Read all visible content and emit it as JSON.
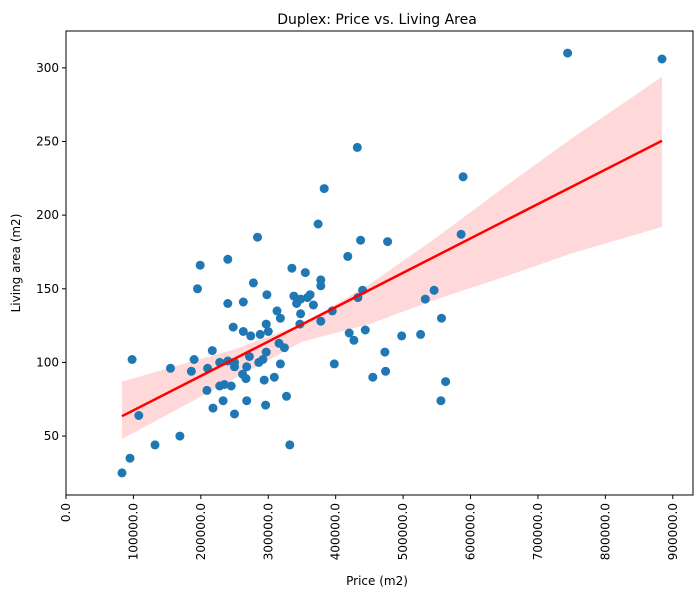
{
  "chart_data": {
    "type": "scatter",
    "title": "Duplex: Price vs. Living Area",
    "xlabel": "Price (m2)",
    "ylabel": "Living area (m2)",
    "xlim": [
      0,
      930000
    ],
    "ylim": [
      10,
      325
    ],
    "x_ticks": [
      0,
      100000,
      200000,
      300000,
      400000,
      500000,
      600000,
      700000,
      800000,
      900000
    ],
    "x_tick_labels": [
      "0.0",
      "100000.0",
      "200000.0",
      "300000.0",
      "400000.0",
      "500000.0",
      "600000.0",
      "700000.0",
      "800000.0",
      "900000.0"
    ],
    "y_ticks": [
      50,
      100,
      150,
      200,
      250,
      300
    ],
    "y_tick_labels": [
      "50",
      "100",
      "150",
      "200",
      "250",
      "300"
    ],
    "grid": false,
    "point_color": "#1f77b4",
    "line_color": "#ff0000",
    "band_color": "#ffcccc",
    "points": [
      [
        83000,
        25
      ],
      [
        95000,
        35
      ],
      [
        98000,
        102
      ],
      [
        108000,
        64
      ],
      [
        132000,
        44
      ],
      [
        155000,
        96
      ],
      [
        169000,
        50
      ],
      [
        186000,
        94
      ],
      [
        190000,
        102
      ],
      [
        195000,
        150
      ],
      [
        199000,
        166
      ],
      [
        209000,
        81
      ],
      [
        210000,
        96
      ],
      [
        217000,
        108
      ],
      [
        218000,
        69
      ],
      [
        228000,
        100
      ],
      [
        228000,
        84
      ],
      [
        233000,
        74
      ],
      [
        235000,
        85
      ],
      [
        240000,
        101
      ],
      [
        240000,
        140
      ],
      [
        240000,
        170
      ],
      [
        245000,
        84
      ],
      [
        248000,
        124
      ],
      [
        250000,
        97
      ],
      [
        250000,
        65
      ],
      [
        250000,
        100
      ],
      [
        262000,
        92
      ],
      [
        263000,
        121
      ],
      [
        263000,
        141
      ],
      [
        267000,
        89
      ],
      [
        268000,
        74
      ],
      [
        268000,
        97
      ],
      [
        272000,
        104
      ],
      [
        274000,
        118
      ],
      [
        278000,
        154
      ],
      [
        284000,
        185
      ],
      [
        286000,
        100
      ],
      [
        288000,
        119
      ],
      [
        292000,
        102
      ],
      [
        294000,
        88
      ],
      [
        296000,
        71
      ],
      [
        297000,
        107
      ],
      [
        297000,
        126
      ],
      [
        298000,
        146
      ],
      [
        300000,
        121
      ],
      [
        309000,
        90
      ],
      [
        313000,
        135
      ],
      [
        316000,
        113
      ],
      [
        318000,
        130
      ],
      [
        318000,
        99
      ],
      [
        324000,
        110
      ],
      [
        327000,
        77
      ],
      [
        332000,
        44
      ],
      [
        335000,
        164
      ],
      [
        338000,
        145
      ],
      [
        342000,
        140
      ],
      [
        347000,
        126
      ],
      [
        348000,
        143
      ],
      [
        348000,
        133
      ],
      [
        355000,
        161
      ],
      [
        358000,
        144
      ],
      [
        362000,
        146
      ],
      [
        367000,
        139
      ],
      [
        374000,
        194
      ],
      [
        378000,
        128
      ],
      [
        378000,
        156
      ],
      [
        378000,
        152
      ],
      [
        383000,
        218
      ],
      [
        395000,
        135
      ],
      [
        398000,
        99
      ],
      [
        418000,
        172
      ],
      [
        420000,
        120
      ],
      [
        427000,
        115
      ],
      [
        432000,
        246
      ],
      [
        433000,
        144
      ],
      [
        437000,
        183
      ],
      [
        440000,
        149
      ],
      [
        444000,
        122
      ],
      [
        455000,
        90
      ],
      [
        473000,
        107
      ],
      [
        474000,
        94
      ],
      [
        477000,
        182
      ],
      [
        498000,
        118
      ],
      [
        526000,
        119
      ],
      [
        533000,
        143
      ],
      [
        546000,
        149
      ],
      [
        556000,
        74
      ],
      [
        557000,
        130
      ],
      [
        563000,
        87
      ],
      [
        586000,
        187
      ],
      [
        589000,
        226
      ],
      [
        744000,
        310
      ],
      [
        884000,
        306
      ]
    ],
    "regression": {
      "x": [
        83000,
        884000
      ],
      "y": [
        63.5,
        250.5
      ]
    },
    "confidence_band": {
      "x": [
        83000,
        250000,
        350000,
        450000,
        550000,
        650000,
        750000,
        884000
      ],
      "upper": [
        87,
        109,
        126,
        153,
        185,
        219,
        252,
        294
      ],
      "lower": [
        48,
        89,
        114,
        126,
        143,
        158,
        174,
        192
      ]
    }
  }
}
